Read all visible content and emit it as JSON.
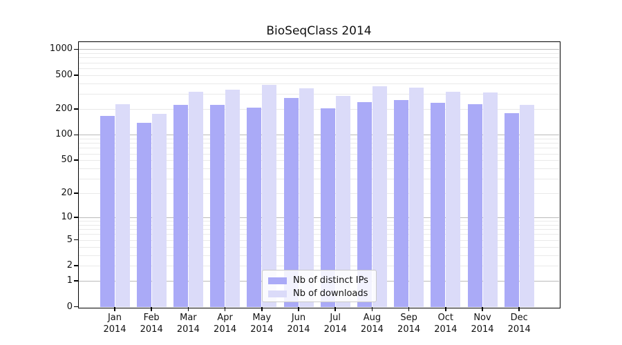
{
  "title": "BioSeqClass 2014",
  "chart_data": {
    "type": "bar",
    "title": "BioSeqClass 2014",
    "year_label": "2014",
    "months": [
      "Jan",
      "Feb",
      "Mar",
      "Apr",
      "May",
      "Jun",
      "Jul",
      "Aug",
      "Sep",
      "Oct",
      "Nov",
      "Dec"
    ],
    "categories": [
      "Jan 2014",
      "Feb 2014",
      "Mar 2014",
      "Apr 2014",
      "May 2014",
      "Jun 2014",
      "Jul 2014",
      "Aug 2014",
      "Sep 2014",
      "Oct 2014",
      "Nov 2014",
      "Dec 2014"
    ],
    "series": [
      {
        "name": "Nb of distinct IPs",
        "color": "#aaaaf7",
        "values": [
          167,
          139,
          223,
          225,
          208,
          270,
          204,
          243,
          255,
          237,
          228,
          180
        ]
      },
      {
        "name": "Nb of downloads",
        "color": "#dbdbf9",
        "values": [
          230,
          176,
          319,
          337,
          385,
          348,
          284,
          373,
          354,
          321,
          315,
          224
        ]
      }
    ],
    "yscale": "log1p",
    "y_ticks": [
      0,
      1,
      2,
      5,
      10,
      20,
      50,
      100,
      200,
      500,
      1000
    ],
    "ylim": [
      0,
      1240
    ],
    "xlabel": "",
    "ylabel": "",
    "grid": {
      "show": true,
      "orientation": "horizontal",
      "major_lines": [
        1,
        10,
        100,
        1000
      ],
      "minor_color": "#e9e9e9",
      "major_color": "#b9b9b9"
    },
    "legend": {
      "position": "bottom-center",
      "frame": true
    },
    "colors": {
      "axis": "#000000",
      "background": "#ffffff",
      "text": "#111111"
    }
  }
}
